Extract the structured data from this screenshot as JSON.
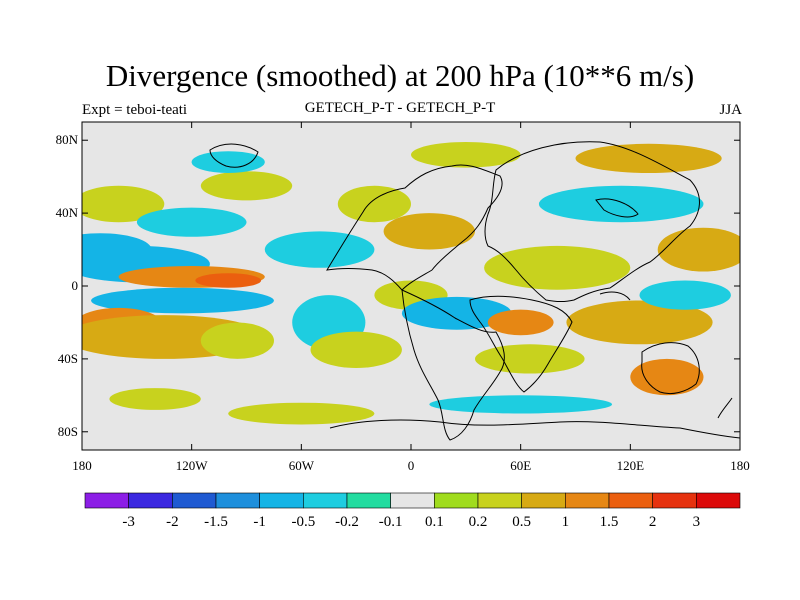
{
  "chart_data": {
    "type": "heatmap",
    "title": "Divergence (smoothed) at 200 hPa (10**6 m/s)",
    "left_string": "Expt = teboi-teati",
    "center_string": "GETECH_P-T - GETECH_P-T",
    "right_string": "JJA",
    "xaxis": {
      "range": [
        -180,
        180
      ],
      "ticks": [
        -180,
        -120,
        -60,
        0,
        60,
        120,
        180
      ],
      "tick_labels": [
        "180",
        "120W",
        "60W",
        "0",
        "60E",
        "120E",
        "180"
      ]
    },
    "yaxis": {
      "range": [
        -90,
        90
      ],
      "ticks": [
        80,
        40,
        0,
        -40,
        -80
      ],
      "tick_labels": [
        "80N",
        "40N",
        "0",
        "40S",
        "80S"
      ]
    },
    "contour_levels": [
      "-3",
      "-2",
      "-1.5",
      "-1",
      "-0.5",
      "-0.2",
      "-0.1",
      "0.1",
      "0.2",
      "0.5",
      "1",
      "1.5",
      "2",
      "3"
    ],
    "colorbar_colors": [
      "#8c1ee6",
      "#3b28e0",
      "#1f5ad2",
      "#1e8fdc",
      "#14b4e6",
      "#1ecde0",
      "#23dca0",
      "#e6e6e6",
      "#a0dc1e",
      "#c8d21e",
      "#d7aa14",
      "#e68714",
      "#eb5f0f",
      "#e6320f",
      "#dc0a0a"
    ],
    "fields": [
      {
        "lon": -170,
        "lat": 20,
        "lon_width": 28,
        "lat_width": 9,
        "value": -0.9
      },
      {
        "lon": -150,
        "lat": 12,
        "lon_width": 40,
        "lat_width": 10,
        "value": -0.6
      },
      {
        "lon": -120,
        "lat": 5,
        "lon_width": 40,
        "lat_width": 6,
        "value": 1.2
      },
      {
        "lon": -100,
        "lat": 3,
        "lon_width": 18,
        "lat_width": 4,
        "value": 1.6
      },
      {
        "lon": -125,
        "lat": -8,
        "lon_width": 50,
        "lat_width": 7,
        "value": -0.9
      },
      {
        "lon": -160,
        "lat": -22,
        "lon_width": 25,
        "lat_width": 10,
        "value": 1.2
      },
      {
        "lon": -135,
        "lat": -28,
        "lon_width": 55,
        "lat_width": 12,
        "value": 0.6
      },
      {
        "lon": -95,
        "lat": -30,
        "lon_width": 20,
        "lat_width": 10,
        "value": 0.4
      },
      {
        "lon": -160,
        "lat": 45,
        "lon_width": 25,
        "lat_width": 10,
        "value": 0.4
      },
      {
        "lon": -120,
        "lat": 35,
        "lon_width": 30,
        "lat_width": 8,
        "value": -0.3
      },
      {
        "lon": -90,
        "lat": 55,
        "lon_width": 25,
        "lat_width": 8,
        "value": 0.3
      },
      {
        "lon": -100,
        "lat": 68,
        "lon_width": 20,
        "lat_width": 6,
        "value": -0.4
      },
      {
        "lon": -50,
        "lat": 20,
        "lon_width": 30,
        "lat_width": 10,
        "value": -0.4
      },
      {
        "lon": -45,
        "lat": -20,
        "lon_width": 20,
        "lat_width": 15,
        "value": -0.5
      },
      {
        "lon": -30,
        "lat": -35,
        "lon_width": 25,
        "lat_width": 10,
        "value": 0.4
      },
      {
        "lon": -20,
        "lat": 45,
        "lon_width": 20,
        "lat_width": 10,
        "value": 0.4
      },
      {
        "lon": 10,
        "lat": 30,
        "lon_width": 25,
        "lat_width": 10,
        "value": 0.5
      },
      {
        "lon": 30,
        "lat": 72,
        "lon_width": 30,
        "lat_width": 7,
        "value": 0.4
      },
      {
        "lon": 0,
        "lat": -5,
        "lon_width": 20,
        "lat_width": 8,
        "value": 0.3
      },
      {
        "lon": 25,
        "lat": -15,
        "lon_width": 30,
        "lat_width": 9,
        "value": -0.6
      },
      {
        "lon": 60,
        "lat": -20,
        "lon_width": 18,
        "lat_width": 7,
        "value": 1.3
      },
      {
        "lon": 65,
        "lat": -40,
        "lon_width": 30,
        "lat_width": 8,
        "value": 0.4
      },
      {
        "lon": 80,
        "lat": 10,
        "lon_width": 40,
        "lat_width": 12,
        "value": 0.4
      },
      {
        "lon": 115,
        "lat": 45,
        "lon_width": 45,
        "lat_width": 10,
        "value": -0.4
      },
      {
        "lon": 130,
        "lat": 70,
        "lon_width": 40,
        "lat_width": 8,
        "value": 0.5
      },
      {
        "lon": 125,
        "lat": -20,
        "lon_width": 40,
        "lat_width": 12,
        "value": 0.5
      },
      {
        "lon": 140,
        "lat": -50,
        "lon_width": 20,
        "lat_width": 10,
        "value": 1.1
      },
      {
        "lon": 160,
        "lat": 20,
        "lon_width": 25,
        "lat_width": 12,
        "value": 0.5
      },
      {
        "lon": 150,
        "lat": -5,
        "lon_width": 25,
        "lat_width": 8,
        "value": -0.3
      },
      {
        "lon": -60,
        "lat": -70,
        "lon_width": 40,
        "lat_width": 6,
        "value": 0.3
      },
      {
        "lon": 60,
        "lat": -65,
        "lon_width": 50,
        "lat_width": 5,
        "value": -0.3
      },
      {
        "lon": -140,
        "lat": -62,
        "lon_width": 25,
        "lat_width": 6,
        "value": 0.3
      }
    ]
  }
}
